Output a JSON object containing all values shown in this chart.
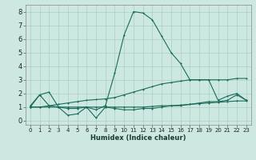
{
  "xlabel": "Humidex (Indice chaleur)",
  "bg_color": "#cce8e0",
  "grid_color": "#aacfc8",
  "line_color": "#1a6b5a",
  "xlim": [
    -0.5,
    23.5
  ],
  "ylim": [
    -0.3,
    8.5
  ],
  "xticks": [
    0,
    1,
    2,
    3,
    4,
    5,
    6,
    7,
    8,
    9,
    10,
    11,
    12,
    13,
    14,
    15,
    16,
    17,
    18,
    19,
    20,
    21,
    22,
    23
  ],
  "yticks": [
    0,
    1,
    2,
    3,
    4,
    5,
    6,
    7,
    8
  ],
  "series_peak_x": [
    0,
    1,
    2,
    3,
    4,
    5,
    6,
    7,
    8,
    9,
    10,
    11,
    12,
    13,
    14,
    15,
    16,
    17,
    18,
    19,
    20,
    21,
    22,
    23
  ],
  "series_peak_y": [
    1.0,
    1.9,
    1.1,
    1.0,
    0.9,
    0.9,
    1.0,
    0.8,
    1.1,
    3.5,
    6.3,
    8.0,
    7.9,
    7.4,
    6.2,
    5.0,
    4.2,
    3.0,
    3.0,
    3.0,
    1.5,
    1.8,
    2.0,
    1.5
  ],
  "series_diag_x": [
    0,
    1,
    2,
    3,
    4,
    5,
    6,
    7,
    8,
    9,
    10,
    11,
    12,
    13,
    14,
    15,
    16,
    17,
    18,
    19,
    20,
    21,
    22,
    23
  ],
  "series_diag_y": [
    1.0,
    1.0,
    1.1,
    1.2,
    1.3,
    1.4,
    1.5,
    1.55,
    1.6,
    1.7,
    1.9,
    2.1,
    2.3,
    2.5,
    2.7,
    2.8,
    2.9,
    3.0,
    3.0,
    3.0,
    3.0,
    3.0,
    3.1,
    3.1
  ],
  "series_flat1_x": [
    0,
    1,
    2,
    3,
    4,
    5,
    6,
    7,
    8,
    9,
    10,
    11,
    12,
    13,
    14,
    15,
    16,
    17,
    18,
    19,
    20,
    21,
    22,
    23
  ],
  "series_flat1_y": [
    1.0,
    1.0,
    1.0,
    1.0,
    1.0,
    1.0,
    1.0,
    1.0,
    1.0,
    1.0,
    1.0,
    1.0,
    1.0,
    1.05,
    1.1,
    1.1,
    1.15,
    1.2,
    1.25,
    1.3,
    1.35,
    1.4,
    1.45,
    1.45
  ],
  "series_noisy_x": [
    0,
    1,
    2,
    3,
    4,
    5,
    6,
    7,
    8,
    9,
    10,
    11,
    12,
    13,
    14,
    15,
    16,
    17,
    18,
    19,
    20,
    21,
    22,
    23
  ],
  "series_noisy_y": [
    1.1,
    1.9,
    2.1,
    1.0,
    0.4,
    0.5,
    1.0,
    0.2,
    1.0,
    0.9,
    0.8,
    0.8,
    0.9,
    0.9,
    1.0,
    1.1,
    1.1,
    1.2,
    1.3,
    1.4,
    1.4,
    1.5,
    1.9,
    1.5
  ]
}
